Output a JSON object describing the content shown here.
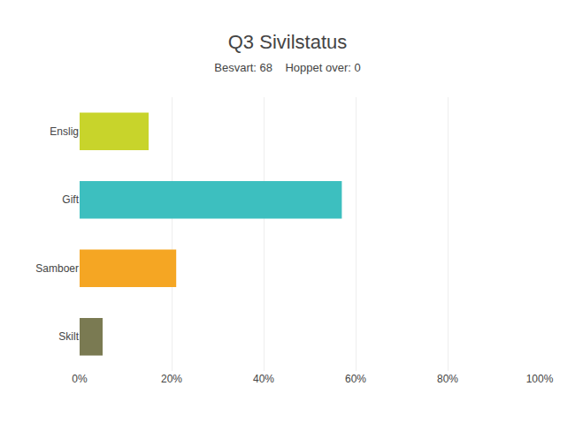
{
  "chart_data": {
    "type": "bar",
    "orientation": "horizontal",
    "title": "Q3 Sivilstatus",
    "subtitle": "Besvart: 68    Hoppet over: 0",
    "categories": [
      "Enslig",
      "Gift",
      "Samboer",
      "Skilt"
    ],
    "values": [
      15,
      57,
      21,
      5
    ],
    "colors": [
      "#c8d42b",
      "#3dbfbf",
      "#f5a623",
      "#7a7a52"
    ],
    "xlim": [
      0,
      100
    ],
    "xticks": [
      {
        "value": 0,
        "label": "0%"
      },
      {
        "value": 20,
        "label": "20%"
      },
      {
        "value": 40,
        "label": "40%"
      },
      {
        "value": 60,
        "label": "60%"
      },
      {
        "value": 80,
        "label": "80%"
      },
      {
        "value": 100,
        "label": "100%"
      }
    ],
    "grid": true
  }
}
